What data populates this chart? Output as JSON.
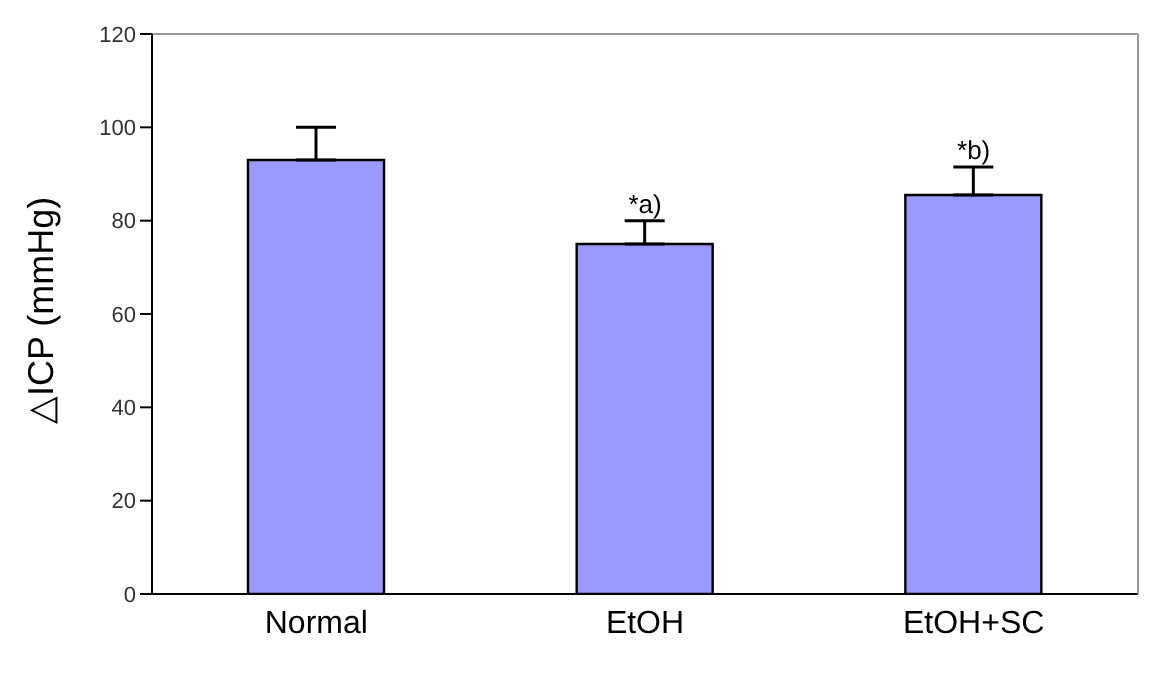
{
  "chart_data": {
    "type": "bar",
    "ylabel": "△ICP (mmHg)",
    "categories": [
      "Normal",
      "EtOH",
      "EtOH+SC"
    ],
    "values": [
      93,
      75,
      85.5
    ],
    "color": "#9999ff",
    "errors": [
      [
        93,
        100
      ],
      [
        75,
        80
      ],
      [
        85.5,
        91.5
      ]
    ],
    "annotations": [
      {
        "text": "*a)",
        "x": "EtOH",
        "y": 80
      },
      {
        "text": "*b)",
        "x": "EtOH+SC",
        "y": 91.5
      }
    ],
    "ylim": [
      0,
      120
    ],
    "yticks": [
      0,
      20,
      40,
      60,
      80,
      100,
      120
    ]
  }
}
